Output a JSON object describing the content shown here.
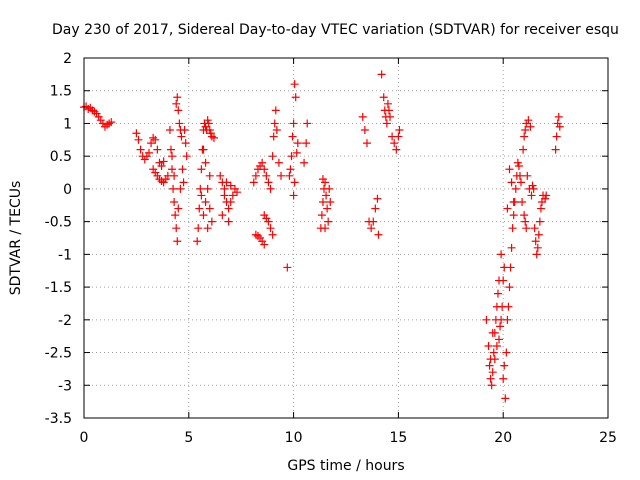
{
  "chart_data": {
    "type": "scatter",
    "title": "Day 230 of 2017, Sidereal Day-to-day VTEC variation (SDTVAR) for receiver esqu",
    "xlabel": "GPS time / hours",
    "ylabel": "SDTVAR / TECUs",
    "xlim": [
      0,
      25
    ],
    "ylim": [
      -3.5,
      2
    ],
    "xticks": [
      0,
      5,
      10,
      15,
      20,
      25
    ],
    "yticks": [
      -3.5,
      -3,
      -2.5,
      -2,
      -1.5,
      -1,
      -0.5,
      0,
      0.5,
      1,
      1.5,
      2
    ],
    "xtick_labels": [
      "0",
      "5",
      "10",
      "15",
      "20",
      "25"
    ],
    "ytick_labels": [
      "-3.5",
      "-3",
      "-2.5",
      "-2",
      "-1.5",
      "-1",
      "-0.5",
      "0",
      "0.5",
      "1",
      "1.5",
      "2"
    ],
    "grid": true,
    "marker": "+",
    "color": "#ff0000",
    "series": [
      {
        "name": "SDTVAR",
        "points": [
          [
            0.0,
            1.25
          ],
          [
            0.1,
            1.26
          ],
          [
            0.2,
            1.22
          ],
          [
            0.3,
            1.24
          ],
          [
            0.4,
            1.2
          ],
          [
            0.5,
            1.18
          ],
          [
            0.6,
            1.15
          ],
          [
            0.7,
            1.1
          ],
          [
            0.8,
            1.05
          ],
          [
            0.9,
            1.0
          ],
          [
            1.0,
            0.95
          ],
          [
            1.1,
            0.98
          ],
          [
            1.2,
            1.0
          ],
          [
            1.3,
            1.02
          ],
          [
            2.5,
            0.85
          ],
          [
            2.6,
            0.75
          ],
          [
            2.7,
            0.6
          ],
          [
            2.8,
            0.5
          ],
          [
            2.9,
            0.45
          ],
          [
            3.0,
            0.5
          ],
          [
            3.1,
            0.55
          ],
          [
            3.2,
            0.7
          ],
          [
            3.3,
            0.78
          ],
          [
            3.4,
            0.75
          ],
          [
            3.5,
            0.6
          ],
          [
            3.6,
            0.4
          ],
          [
            3.7,
            0.35
          ],
          [
            3.8,
            0.42
          ],
          [
            3.3,
            0.3
          ],
          [
            3.4,
            0.25
          ],
          [
            3.5,
            0.2
          ],
          [
            3.6,
            0.15
          ],
          [
            3.7,
            0.12
          ],
          [
            3.8,
            0.1
          ],
          [
            3.9,
            0.15
          ],
          [
            4.0,
            0.2
          ],
          [
            4.1,
            0.9
          ],
          [
            4.15,
            0.6
          ],
          [
            4.2,
            0.3
          ],
          [
            4.25,
            0.0
          ],
          [
            4.3,
            -0.2
          ],
          [
            4.35,
            -0.4
          ],
          [
            4.4,
            -0.6
          ],
          [
            4.45,
            -0.8
          ],
          [
            4.2,
            0.5
          ],
          [
            4.3,
            0.2
          ],
          [
            4.4,
            1.3
          ],
          [
            4.45,
            1.4
          ],
          [
            4.5,
            1.2
          ],
          [
            4.55,
            1.0
          ],
          [
            4.6,
            0.9
          ],
          [
            4.65,
            0.8
          ],
          [
            4.5,
            -0.3
          ],
          [
            4.6,
            0.0
          ],
          [
            4.7,
            0.3
          ],
          [
            4.8,
            0.9
          ],
          [
            4.85,
            0.7
          ],
          [
            4.9,
            0.5
          ],
          [
            4.75,
            0.1
          ],
          [
            5.4,
            -0.8
          ],
          [
            5.45,
            -0.6
          ],
          [
            5.5,
            -0.3
          ],
          [
            5.55,
            0.0
          ],
          [
            5.6,
            0.3
          ],
          [
            5.65,
            0.6
          ],
          [
            5.7,
            0.9
          ],
          [
            5.75,
            1.0
          ],
          [
            5.8,
            0.95
          ],
          [
            5.85,
            0.9
          ],
          [
            5.9,
            1.05
          ],
          [
            5.95,
            1.0
          ],
          [
            6.0,
            0.9
          ],
          [
            6.05,
            0.85
          ],
          [
            6.1,
            0.8
          ],
          [
            6.2,
            0.78
          ],
          [
            5.6,
            -0.1
          ],
          [
            5.7,
            -0.4
          ],
          [
            5.8,
            -0.2
          ],
          [
            5.9,
            0.0
          ],
          [
            6.0,
            -0.3
          ],
          [
            6.1,
            -0.5
          ],
          [
            6.0,
            0.2
          ],
          [
            5.8,
            0.4
          ],
          [
            5.9,
            -0.6
          ],
          [
            5.7,
            0.6
          ],
          [
            6.5,
            0.2
          ],
          [
            6.6,
            0.1
          ],
          [
            6.7,
            -0.1
          ],
          [
            6.8,
            -0.2
          ],
          [
            6.9,
            -0.3
          ],
          [
            7.0,
            -0.2
          ],
          [
            7.1,
            -0.1
          ],
          [
            7.2,
            0.0
          ],
          [
            7.3,
            -0.05
          ],
          [
            6.6,
            -0.4
          ],
          [
            6.7,
            0.0
          ],
          [
            6.8,
            0.1
          ],
          [
            6.9,
            -0.5
          ],
          [
            7.0,
            0.05
          ],
          [
            8.2,
            -0.7
          ],
          [
            8.3,
            -0.72
          ],
          [
            8.4,
            -0.75
          ],
          [
            8.5,
            -0.8
          ],
          [
            8.6,
            -0.85
          ],
          [
            8.1,
            0.1
          ],
          [
            8.2,
            0.2
          ],
          [
            8.3,
            0.3
          ],
          [
            8.4,
            0.35
          ],
          [
            8.5,
            0.4
          ],
          [
            8.6,
            0.3
          ],
          [
            8.7,
            0.2
          ],
          [
            8.8,
            0.1
          ],
          [
            8.6,
            -0.4
          ],
          [
            8.7,
            -0.45
          ],
          [
            8.8,
            -0.5
          ],
          [
            8.9,
            -0.6
          ],
          [
            9.0,
            -0.7
          ],
          [
            8.9,
            0.0
          ],
          [
            9.0,
            0.5
          ],
          [
            9.05,
            0.8
          ],
          [
            9.1,
            1.0
          ],
          [
            9.15,
            1.2
          ],
          [
            9.2,
            0.9
          ],
          [
            9.3,
            0.4
          ],
          [
            9.4,
            0.2
          ],
          [
            9.7,
            -1.2
          ],
          [
            9.8,
            0.2
          ],
          [
            9.85,
            0.3
          ],
          [
            9.9,
            0.5
          ],
          [
            9.95,
            0.8
          ],
          [
            10.0,
            1.0
          ],
          [
            10.05,
            1.6
          ],
          [
            10.1,
            1.4
          ],
          [
            10.0,
            -0.1
          ],
          [
            10.05,
            0.1
          ],
          [
            10.15,
            0.55
          ],
          [
            10.2,
            0.7
          ],
          [
            10.5,
            0.4
          ],
          [
            10.6,
            0.7
          ],
          [
            10.65,
            1.0
          ],
          [
            11.3,
            -0.6
          ],
          [
            11.35,
            -0.4
          ],
          [
            11.4,
            -0.2
          ],
          [
            11.45,
            0.0
          ],
          [
            11.5,
            0.1
          ],
          [
            11.55,
            -0.1
          ],
          [
            11.6,
            -0.3
          ],
          [
            11.65,
            -0.5
          ],
          [
            11.7,
            0.0
          ],
          [
            11.75,
            -0.2
          ],
          [
            11.5,
            -0.6
          ],
          [
            11.4,
            0.15
          ],
          [
            13.3,
            1.1
          ],
          [
            13.4,
            0.9
          ],
          [
            13.5,
            0.7
          ],
          [
            13.6,
            -0.5
          ],
          [
            13.7,
            -0.6
          ],
          [
            13.8,
            -0.5
          ],
          [
            13.9,
            -0.3
          ],
          [
            14.0,
            -0.15
          ],
          [
            14.05,
            -0.7
          ],
          [
            14.2,
            1.75
          ],
          [
            14.3,
            1.4
          ],
          [
            14.35,
            1.2
          ],
          [
            14.4,
            1.1
          ],
          [
            14.45,
            1.0
          ],
          [
            14.5,
            1.3
          ],
          [
            14.55,
            1.2
          ],
          [
            14.6,
            1.1
          ],
          [
            14.7,
            0.8
          ],
          [
            14.8,
            0.7
          ],
          [
            14.9,
            0.6
          ],
          [
            15.0,
            0.8
          ],
          [
            15.05,
            0.9
          ],
          [
            19.2,
            -2.0
          ],
          [
            19.3,
            -2.4
          ],
          [
            19.35,
            -2.7
          ],
          [
            19.4,
            -2.9
          ],
          [
            19.45,
            -3.0
          ],
          [
            19.5,
            -2.8
          ],
          [
            19.55,
            -2.5
          ],
          [
            19.6,
            -2.2
          ],
          [
            19.65,
            -2.0
          ],
          [
            19.7,
            -1.8
          ],
          [
            19.75,
            -1.6
          ],
          [
            19.8,
            -1.4
          ],
          [
            19.85,
            -2.1
          ],
          [
            19.9,
            -2.0
          ],
          [
            19.95,
            -1.8
          ],
          [
            20.0,
            -1.4
          ],
          [
            20.05,
            -1.2
          ],
          [
            19.4,
            -2.6
          ],
          [
            19.5,
            -2.2
          ],
          [
            19.6,
            -2.6
          ],
          [
            19.7,
            -2.4
          ],
          [
            19.8,
            -2.3
          ],
          [
            19.9,
            -1.0
          ],
          [
            20.0,
            -2.9
          ],
          [
            20.05,
            -2.7
          ],
          [
            20.1,
            -3.2
          ],
          [
            20.15,
            -2.5
          ],
          [
            20.2,
            -2.0
          ],
          [
            20.25,
            -1.8
          ],
          [
            20.3,
            -1.5
          ],
          [
            20.35,
            -1.2
          ],
          [
            20.4,
            -0.9
          ],
          [
            20.45,
            -0.6
          ],
          [
            20.5,
            -0.4
          ],
          [
            20.55,
            -0.2
          ],
          [
            20.6,
            0.0
          ],
          [
            20.65,
            0.2
          ],
          [
            20.7,
            0.4
          ],
          [
            20.75,
            0.35
          ],
          [
            20.2,
            -0.3
          ],
          [
            20.3,
            0.3
          ],
          [
            20.4,
            0.1
          ],
          [
            20.5,
            -0.2
          ],
          [
            20.8,
            0.2
          ],
          [
            20.85,
            0.1
          ],
          [
            20.9,
            -0.2
          ],
          [
            21.0,
            -0.4
          ],
          [
            21.05,
            -0.5
          ],
          [
            21.1,
            -0.6
          ],
          [
            20.95,
            0.6
          ],
          [
            21.0,
            0.8
          ],
          [
            21.05,
            0.9
          ],
          [
            21.1,
            1.0
          ],
          [
            21.2,
            1.05
          ],
          [
            21.3,
            0.95
          ],
          [
            21.15,
            0.2
          ],
          [
            21.25,
            0.0
          ],
          [
            21.35,
            -0.1
          ],
          [
            21.5,
            -0.6
          ],
          [
            21.55,
            -0.8
          ],
          [
            21.6,
            -1.0
          ],
          [
            21.65,
            -0.9
          ],
          [
            21.7,
            -0.7
          ],
          [
            21.75,
            -0.5
          ],
          [
            21.8,
            -0.3
          ],
          [
            21.85,
            -0.2
          ],
          [
            21.9,
            -0.1
          ],
          [
            22.0,
            -0.15
          ],
          [
            22.05,
            -0.1
          ],
          [
            21.4,
            0.05
          ],
          [
            21.45,
            0.0
          ],
          [
            22.5,
            0.6
          ],
          [
            22.55,
            0.8
          ],
          [
            22.6,
            1.0
          ],
          [
            22.65,
            1.1
          ],
          [
            22.7,
            0.95
          ]
        ]
      }
    ]
  }
}
